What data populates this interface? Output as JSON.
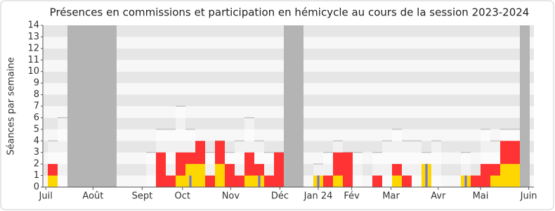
{
  "chart_data": {
    "type": "bar",
    "title": "Présences en commissions et participation en hémicycle au cours de la session 2023-2024",
    "y_label": "Séances par semaine",
    "categories": [
      null,
      null,
      null,
      null,
      null,
      null,
      null,
      null,
      null,
      null,
      null,
      null,
      null,
      null,
      null,
      null,
      null,
      null,
      null,
      null,
      null,
      null,
      null,
      null,
      null,
      null,
      null,
      null,
      null,
      null,
      null,
      null,
      null,
      null,
      null,
      null,
      null,
      null,
      null,
      null,
      null,
      null,
      null,
      null,
      null,
      null,
      null,
      null,
      null
    ],
    "shaded_categories": [
      2,
      3,
      4,
      5,
      6,
      24,
      25,
      48
    ],
    "shade_color": "#b4b4b4",
    "xticks": [
      {
        "value": -0.2,
        "label": "Juil"
      },
      {
        "value": 4.6,
        "label": "Août"
      },
      {
        "value": 9.6,
        "label": "Sept"
      },
      {
        "value": 13.7,
        "label": "Oct"
      },
      {
        "value": 18.6,
        "label": "Nov"
      },
      {
        "value": 23.6,
        "label": "Déc"
      },
      {
        "value": 27.5,
        "label": "Jan 24"
      },
      {
        "value": 30.9,
        "label": "Fév"
      },
      {
        "value": 34.9,
        "label": "Mar"
      },
      {
        "value": 39.7,
        "label": "Avr"
      },
      {
        "value": 44,
        "label": "Mai"
      },
      {
        "value": 48.9,
        "label": "Juin"
      }
    ],
    "ylim": [
      0,
      14
    ],
    "yticks": [
      0,
      1,
      2,
      3,
      4,
      5,
      6,
      7,
      8,
      9,
      10,
      11,
      12,
      13,
      14
    ],
    "series": [
      {
        "color": "#bbbbbb",
        "style": "level",
        "values": [
          4,
          6,
          null,
          null,
          null,
          null,
          null,
          null,
          null,
          null,
          3,
          5,
          5,
          7,
          5,
          3,
          3,
          4,
          3,
          4,
          6,
          4,
          3,
          3,
          null,
          null,
          null,
          2,
          3,
          4,
          3,
          3,
          null,
          3,
          4,
          5,
          4,
          4,
          3,
          4,
          null,
          null,
          3,
          null,
          5,
          4,
          5,
          5,
          null
        ]
      },
      {
        "color": "#ff3333",
        "style": "bar",
        "values": [
          2,
          null,
          null,
          null,
          null,
          null,
          null,
          null,
          null,
          null,
          null,
          3,
          1,
          3,
          3,
          4,
          1,
          4,
          2,
          1,
          3,
          2,
          1,
          3,
          null,
          null,
          null,
          null,
          1,
          3,
          3,
          null,
          null,
          1,
          null,
          2,
          1,
          null,
          null,
          null,
          null,
          null,
          null,
          1,
          2,
          2,
          4,
          4,
          null
        ]
      },
      {
        "color": "#ffd700",
        "style": "bar",
        "values": [
          1,
          null,
          null,
          null,
          null,
          null,
          null,
          null,
          null,
          null,
          null,
          null,
          null,
          1,
          2,
          2,
          null,
          2,
          null,
          null,
          1,
          1,
          null,
          null,
          null,
          null,
          null,
          1,
          null,
          1,
          null,
          null,
          null,
          null,
          null,
          1,
          null,
          null,
          2,
          null,
          null,
          null,
          1,
          null,
          null,
          1,
          2,
          2,
          null
        ]
      },
      {
        "color": "#7070e0",
        "style": "thin",
        "values": [
          null,
          null,
          null,
          null,
          null,
          null,
          null,
          null,
          null,
          null,
          null,
          null,
          null,
          null,
          1,
          null,
          null,
          null,
          null,
          null,
          null,
          1,
          null,
          null,
          null,
          null,
          null,
          1,
          null,
          null,
          null,
          null,
          null,
          null,
          null,
          null,
          null,
          null,
          2,
          null,
          null,
          null,
          1,
          null,
          null,
          null,
          null,
          null,
          null
        ]
      }
    ]
  }
}
